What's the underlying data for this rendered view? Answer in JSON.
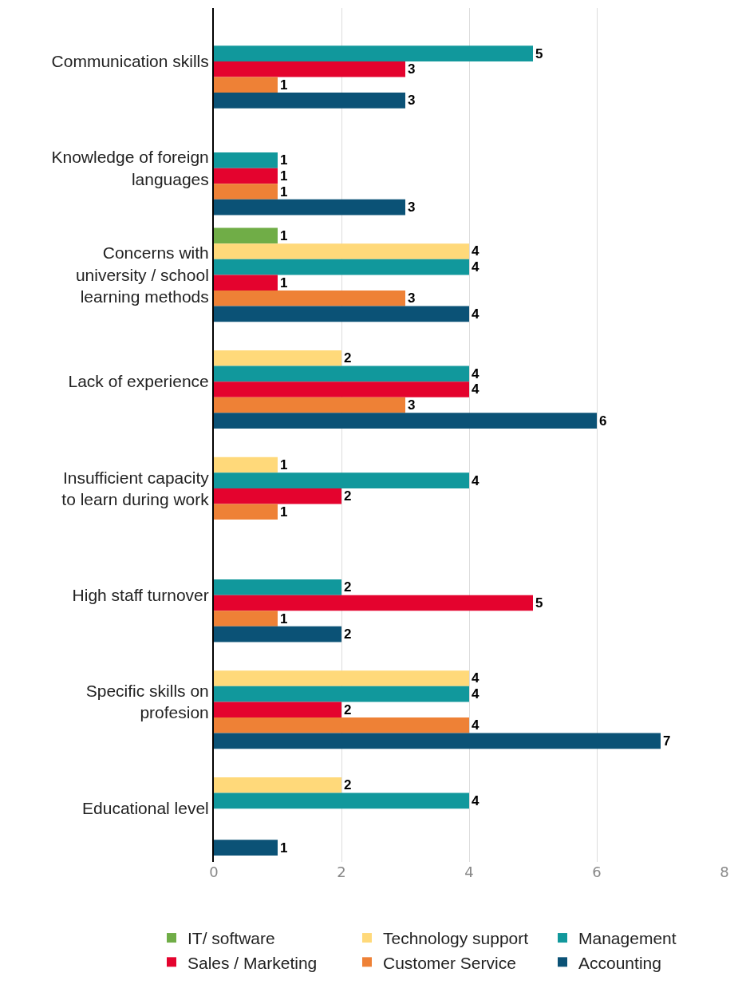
{
  "chart_data": {
    "type": "bar",
    "orientation": "horizontal",
    "categories": [
      "Communication skills",
      "Knowledge of foreign languages",
      "Concerns with university / school learning methods",
      "Lack of experience",
      "Insufficient capacity to learn during work",
      "High staff turnover",
      "Specific skills on profesion",
      "Educational level"
    ],
    "series": [
      {
        "name": "IT/ software",
        "color": "#70ad47",
        "values": [
          null,
          null,
          1,
          null,
          null,
          null,
          null,
          null
        ]
      },
      {
        "name": "Technology support",
        "color": "#ffd97a",
        "values": [
          null,
          null,
          4,
          2,
          1,
          null,
          4,
          2
        ]
      },
      {
        "name": "Management",
        "color": "#11989c",
        "values": [
          5,
          1,
          4,
          4,
          4,
          2,
          4,
          4
        ]
      },
      {
        "name": "Sales / Marketing",
        "color": "#e4032e",
        "values": [
          3,
          1,
          1,
          4,
          2,
          5,
          2,
          null
        ]
      },
      {
        "name": "Customer Service",
        "color": "#ee8136",
        "values": [
          1,
          1,
          3,
          3,
          1,
          1,
          4,
          null
        ]
      },
      {
        "name": "Accounting",
        "color": "#0b5276",
        "values": [
          3,
          3,
          4,
          6,
          null,
          2,
          7,
          1
        ]
      }
    ],
    "xlim": [
      0,
      8
    ],
    "xticks": [
      0,
      2,
      4,
      6,
      8
    ],
    "grid": "x",
    "legend": "bottom",
    "data_labels": true
  }
}
